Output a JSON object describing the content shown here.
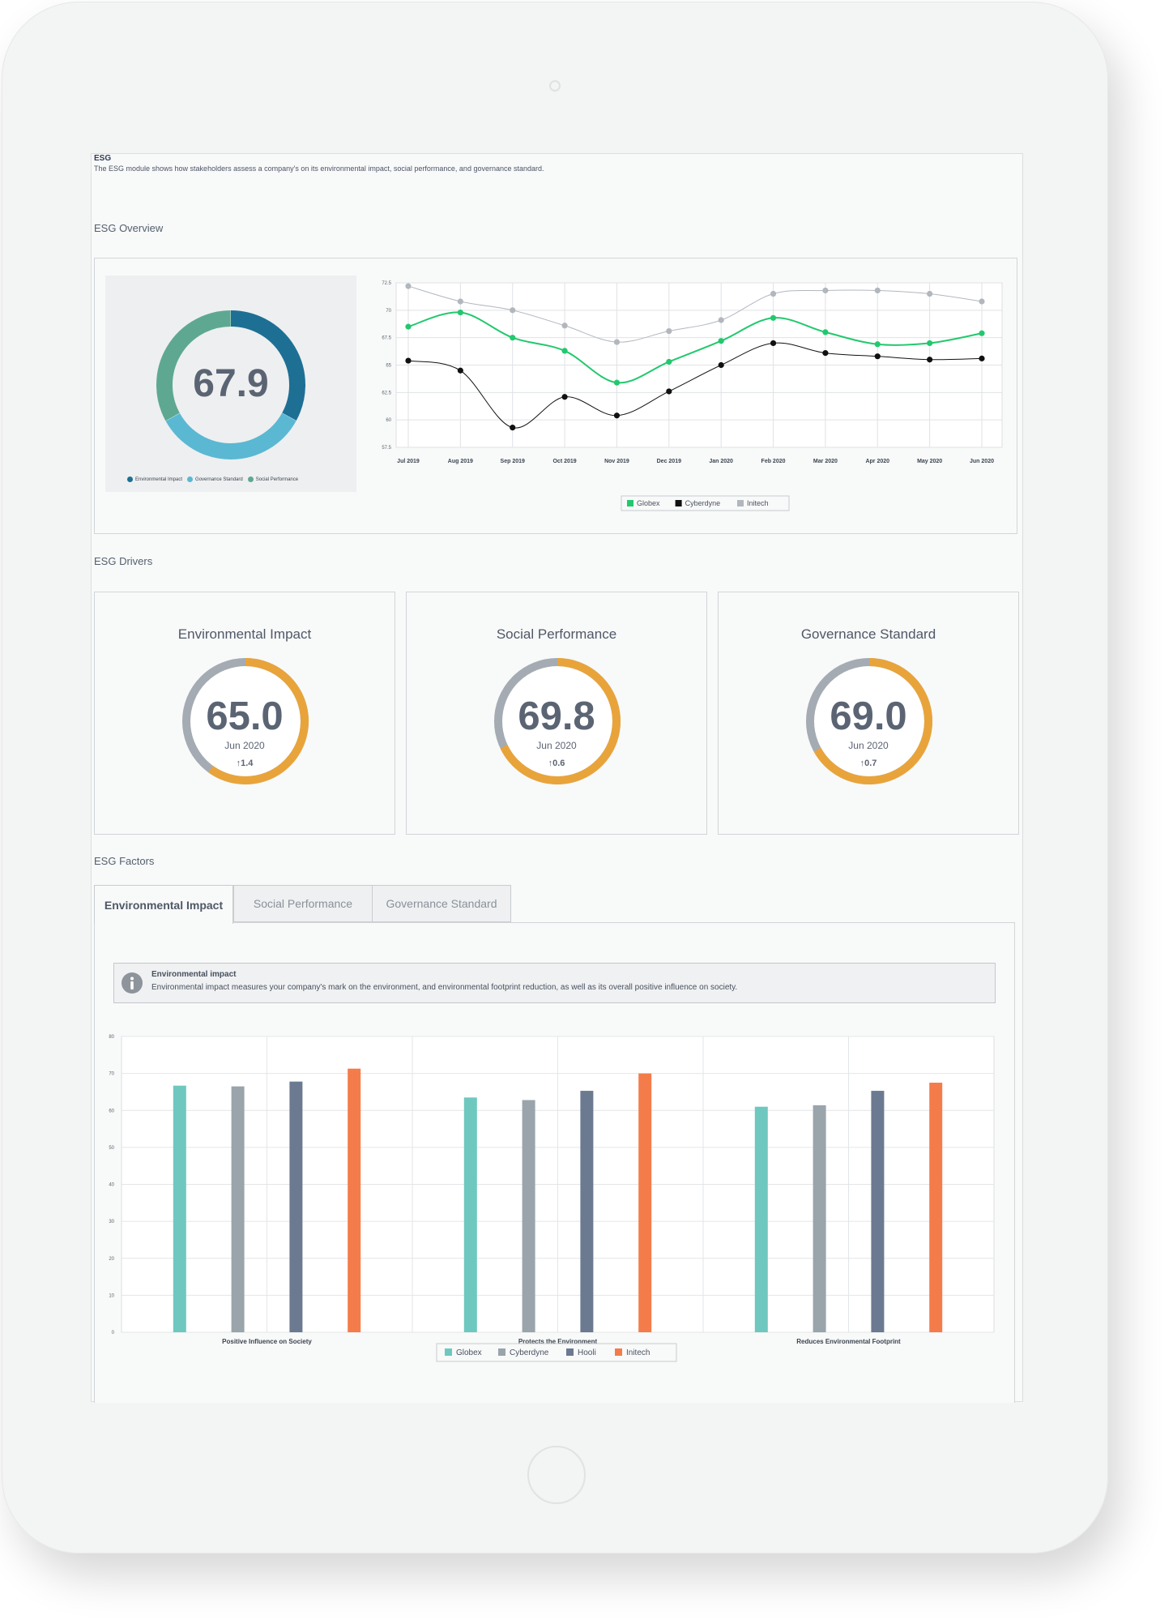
{
  "header": {
    "title": "ESG",
    "description": "The ESG module shows how stakeholders assess a company's on its environmental impact, social performance, and governance standard."
  },
  "overview": {
    "section_label": "ESG Overview",
    "score": "67.9",
    "donut_segments": [
      {
        "name": "Environmental Impact",
        "color": "#1e6f94",
        "value": 0.33
      },
      {
        "name": "Governance Standard",
        "color": "#5ab8d3",
        "value": 0.34
      },
      {
        "name": "Social Performance",
        "color": "#5ea892",
        "value": 0.33
      }
    ]
  },
  "drivers": {
    "section_label": "ESG Drivers",
    "items": [
      {
        "title": "Environmental Impact",
        "value": "65.0",
        "date": "Jun 2020",
        "delta": "1.4",
        "fill": 0.6
      },
      {
        "title": "Social Performance",
        "value": "69.8",
        "date": "Jun 2020",
        "delta": "0.6",
        "fill": 0.68
      },
      {
        "title": "Governance Standard",
        "value": "69.0",
        "date": "Jun 2020",
        "delta": "0.7",
        "fill": 0.67
      }
    ]
  },
  "factors": {
    "section_label": "ESG Factors",
    "tabs": [
      {
        "label": "Environmental Impact",
        "active": true
      },
      {
        "label": "Social Performance",
        "active": false
      },
      {
        "label": "Governance Standard",
        "active": false
      }
    ],
    "info_title": "Environmental impact",
    "info_text": "Environmental impact measures your company's mark on the environment, and environmental footprint reduction, as well as its overall positive influence on society.",
    "info_icon": "info-icon"
  },
  "colors": {
    "gauge_fill": "#e8a43a",
    "gauge_track": "#a4abb3"
  },
  "chart_data": [
    {
      "type": "line",
      "title": "",
      "categories": [
        "Jul 2019",
        "Aug 2019",
        "Sep 2019",
        "Oct 2019",
        "Nov 2019",
        "Dec 2019",
        "Jan 2020",
        "Feb 2020",
        "Mar 2020",
        "Apr 2020",
        "May 2020",
        "Jun 2020"
      ],
      "ylim": [
        57.5,
        72.5
      ],
      "yticks": [
        "57.5",
        "60",
        "62.5",
        "65",
        "67.5",
        "70",
        "72.5"
      ],
      "series": [
        {
          "name": "Globex",
          "color": "#22c86e",
          "values": [
            68.5,
            69.8,
            67.5,
            66.3,
            63.4,
            65.3,
            67.2,
            69.3,
            68.0,
            66.9,
            67.0,
            67.9
          ]
        },
        {
          "name": "Cyberdyne",
          "color": "#111111",
          "values": [
            65.4,
            64.5,
            59.3,
            62.1,
            60.4,
            62.6,
            65.0,
            67.0,
            66.1,
            65.8,
            65.5,
            65.6
          ]
        },
        {
          "name": "Initech",
          "color": "#b2b7be",
          "values": [
            72.2,
            70.8,
            70.0,
            68.6,
            67.1,
            68.1,
            69.1,
            71.5,
            71.8,
            71.8,
            71.5,
            70.8
          ]
        }
      ],
      "legend": [
        {
          "name": "Globex",
          "color": "#22c86e"
        },
        {
          "name": "Cyberdyne",
          "color": "#111111"
        },
        {
          "name": "Initech",
          "color": "#b2b7be"
        }
      ],
      "grid": true
    },
    {
      "type": "bar",
      "categories": [
        "Positive Influence on Society",
        "Protects the Environment",
        "Reduces Environmental Footprint"
      ],
      "ylim": [
        0,
        80
      ],
      "yticks": [
        "0",
        "10",
        "20",
        "30",
        "40",
        "50",
        "60",
        "70",
        "80"
      ],
      "series": [
        {
          "name": "Globex",
          "color": "#6ec8c0",
          "values": [
            66.7,
            63.5,
            61.0
          ]
        },
        {
          "name": "Cyberdyne",
          "color": "#9aa4ab",
          "values": [
            66.5,
            62.8,
            61.4
          ]
        },
        {
          "name": "Hooli",
          "color": "#6b7a90",
          "values": [
            67.8,
            65.3,
            65.3
          ]
        },
        {
          "name": "Initech",
          "color": "#f47c4b",
          "values": [
            71.3,
            70.0,
            67.5
          ]
        }
      ],
      "grid": true
    }
  ]
}
